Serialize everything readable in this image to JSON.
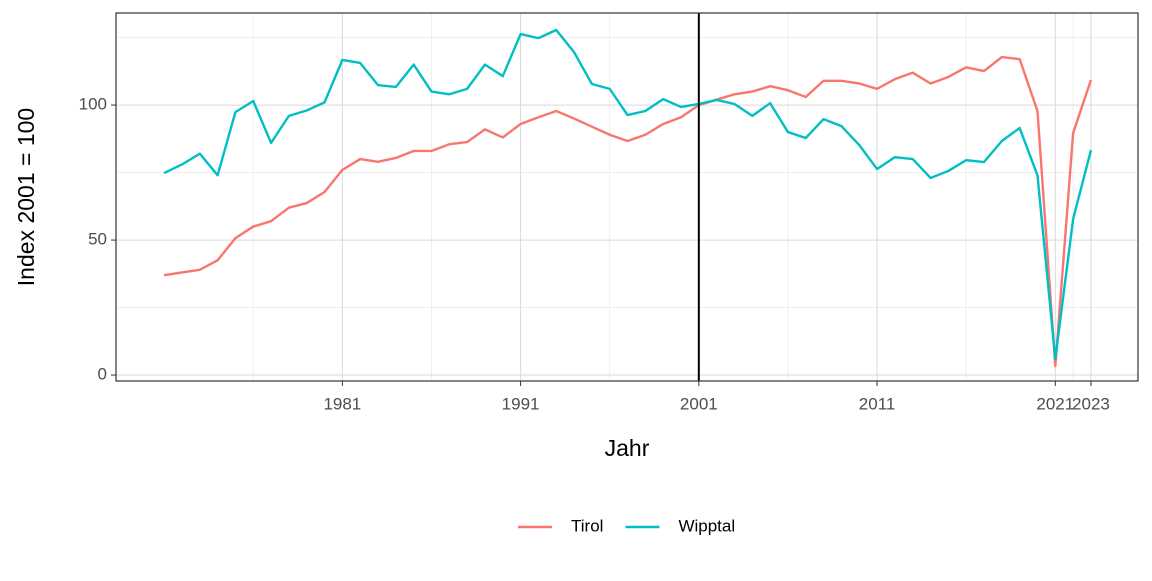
{
  "chart_data": {
    "type": "line",
    "x_label": "Jahr",
    "y_label": "Index 2001 = 100",
    "x": [
      1971,
      1972,
      1973,
      1974,
      1975,
      1976,
      1977,
      1978,
      1979,
      1980,
      1981,
      1982,
      1983,
      1984,
      1985,
      1986,
      1987,
      1988,
      1989,
      1990,
      1991,
      1992,
      1993,
      1994,
      1995,
      1996,
      1997,
      1998,
      1999,
      2000,
      2001,
      2002,
      2003,
      2004,
      2005,
      2006,
      2007,
      2008,
      2009,
      2010,
      2011,
      2012,
      2013,
      2014,
      2015,
      2016,
      2017,
      2018,
      2019,
      2020,
      2021,
      2022,
      2023
    ],
    "series": [
      {
        "name": "Tirol",
        "color": "#F8766D",
        "values": [
          37,
          38,
          39,
          42.5,
          50.7,
          55,
          57,
          62,
          63.7,
          67.8,
          76,
          80,
          79,
          80.4,
          83,
          83,
          85.5,
          86.3,
          91,
          88,
          93,
          95.5,
          97.8,
          95,
          92,
          89,
          86.7,
          89,
          93,
          95.5,
          100,
          102,
          104,
          105,
          107,
          105.5,
          103,
          109,
          109,
          108,
          106,
          109.6,
          112,
          108,
          110.4,
          114,
          112.6,
          117.8,
          117,
          97.8,
          3.3,
          89.6,
          109.3
        ]
      },
      {
        "name": "Wipptal",
        "color": "#00BFC4",
        "values": [
          74.8,
          78,
          82,
          74,
          97.4,
          101.5,
          86,
          96,
          98,
          101,
          116.7,
          115.6,
          107.4,
          106.7,
          115,
          105,
          104,
          106,
          115,
          110.7,
          126.3,
          124.8,
          127.8,
          119.6,
          107.8,
          106,
          96.3,
          97.8,
          102.2,
          99.3,
          100.4,
          101.9,
          100.4,
          96,
          100.7,
          90,
          87.8,
          94.8,
          92.2,
          85.2,
          76.3,
          80.7,
          80,
          73,
          75.6,
          79.6,
          78.9,
          86.7,
          91.5,
          74,
          5.9,
          57.8,
          83.3
        ]
      }
    ],
    "xlim": [
      1968.3,
      2025.64
    ],
    "ylim": [
      -2.2,
      134.1
    ],
    "xticks": [
      1981,
      1991,
      2001,
      2011,
      2021,
      2023
    ],
    "yticks": [
      0,
      50,
      100
    ],
    "xminor": [
      1976,
      1986,
      1996,
      2006,
      2016,
      2022
    ],
    "yminor": [
      25,
      75,
      125
    ],
    "vline": 2001,
    "grid": true,
    "legend": "bottom"
  }
}
